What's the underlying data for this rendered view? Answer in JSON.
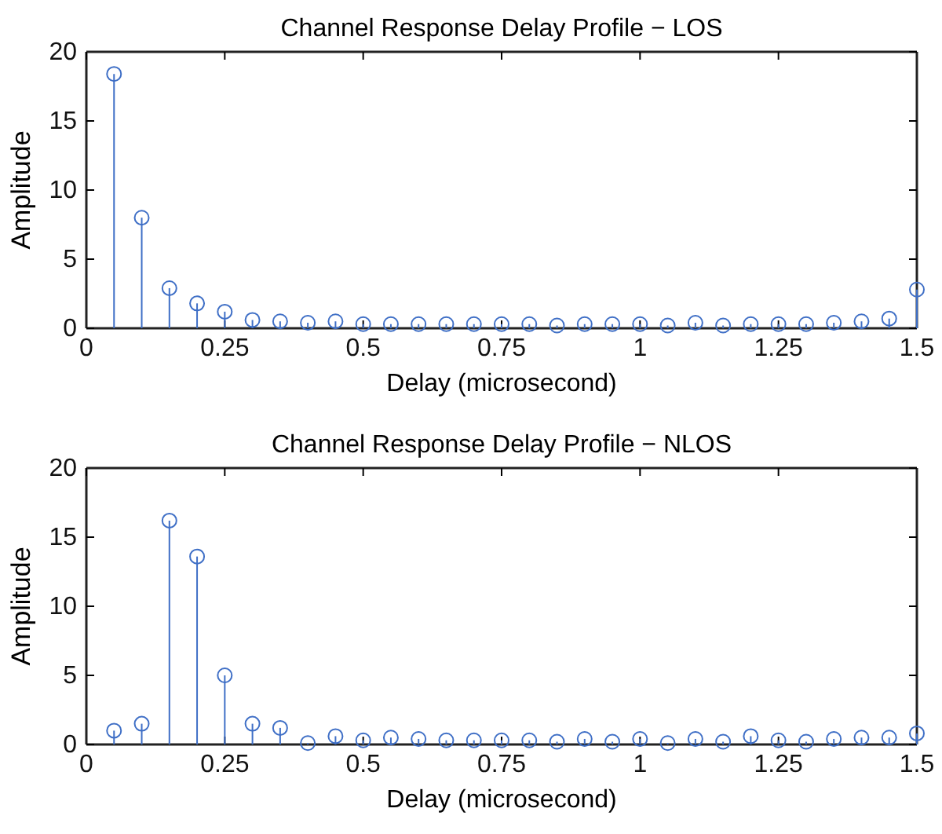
{
  "chart_data": [
    {
      "type": "lollipop",
      "title": "Channel Response Delay Profile − LOS",
      "xlabel": "Delay (microsecond)",
      "ylabel": "Amplitude",
      "x": [
        0.05,
        0.1,
        0.15,
        0.2,
        0.25,
        0.3,
        0.35,
        0.4,
        0.45,
        0.5,
        0.55,
        0.6,
        0.65,
        0.7,
        0.75,
        0.8,
        0.85,
        0.9,
        0.95,
        1.0,
        1.05,
        1.1,
        1.15,
        1.2,
        1.25,
        1.3,
        1.35,
        1.4,
        1.45,
        1.5
      ],
      "series": [
        {
          "color": "#3f6fc6",
          "values": [
            18.4,
            8.0,
            2.9,
            1.8,
            1.2,
            0.6,
            0.5,
            0.4,
            0.5,
            0.3,
            0.3,
            0.3,
            0.3,
            0.3,
            0.3,
            0.3,
            0.2,
            0.3,
            0.3,
            0.3,
            0.2,
            0.4,
            0.2,
            0.3,
            0.3,
            0.3,
            0.4,
            0.5,
            0.7,
            2.8
          ]
        }
      ],
      "xlim": [
        0,
        1.5
      ],
      "xticks": [
        0,
        0.25,
        0.5,
        0.75,
        1,
        1.25,
        1.5
      ],
      "ylim": [
        0,
        20
      ],
      "yticks": [
        0,
        5,
        10,
        15,
        20
      ],
      "marker": "circle",
      "grid": false
    },
    {
      "type": "lollipop",
      "title": "Channel Response Delay Profile − NLOS",
      "xlabel": "Delay (microsecond)",
      "ylabel": "Amplitude",
      "x": [
        0.05,
        0.1,
        0.15,
        0.2,
        0.25,
        0.3,
        0.35,
        0.4,
        0.45,
        0.5,
        0.55,
        0.6,
        0.65,
        0.7,
        0.75,
        0.8,
        0.85,
        0.9,
        0.95,
        1.0,
        1.05,
        1.1,
        1.15,
        1.2,
        1.25,
        1.3,
        1.35,
        1.4,
        1.45,
        1.5
      ],
      "series": [
        {
          "color": "#3f6fc6",
          "values": [
            1.0,
            1.5,
            16.2,
            13.6,
            5.0,
            1.5,
            1.2,
            0.1,
            0.6,
            0.3,
            0.5,
            0.4,
            0.3,
            0.3,
            0.3,
            0.3,
            0.2,
            0.4,
            0.2,
            0.4,
            0.1,
            0.4,
            0.2,
            0.6,
            0.3,
            0.2,
            0.4,
            0.5,
            0.5,
            0.8
          ]
        }
      ],
      "xlim": [
        0,
        1.5
      ],
      "xticks": [
        0,
        0.25,
        0.5,
        0.75,
        1,
        1.25,
        1.5
      ],
      "ylim": [
        0,
        20
      ],
      "yticks": [
        0,
        5,
        10,
        15,
        20
      ],
      "marker": "circle",
      "grid": false
    }
  ]
}
